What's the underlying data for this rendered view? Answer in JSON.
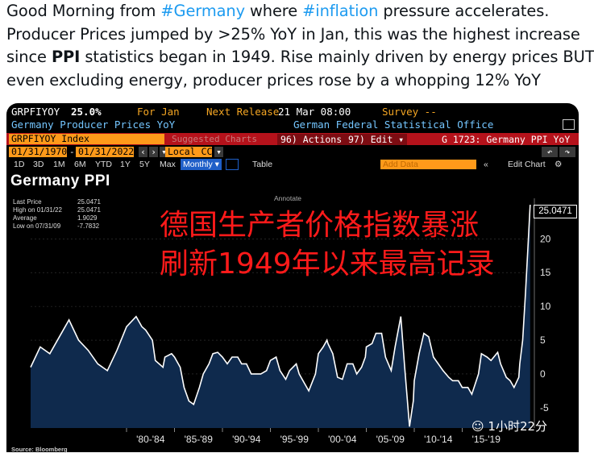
{
  "tweet": {
    "line1_a": "Good Morning from ",
    "line1_tag1": "#Germany",
    "line1_b": " where ",
    "line1_tag2": "#inflation",
    "line1_c": " pressure accelerates.",
    "line2": "Producer Prices jumped by >25% YoY in Jan, this was the highest increase",
    "line3_a": "since ",
    "line3_bold": "PPI",
    "line3_b": " statistics began in 1949. Rise mainly driven by energy prices BUT",
    "line4": "even excluding energy, producer prices rose by a whopping 12% YoY"
  },
  "terminal": {
    "ticker": "GRPFIYOY",
    "value": "25.0%",
    "for_label": "For Jan",
    "next_release": "Next Release",
    "next_release_date": "21 Mar 08:00",
    "survey": "Survey --",
    "subtitle": "Germany Producer Prices YoY",
    "source_office": "German Federal Statistical Office",
    "index_field": "GRPFIYOY Index",
    "suggested": "Suggested Charts",
    "actions": "96) Actions ▾",
    "edit": "97) Edit ▾",
    "chart_id": "G 1723: Germany PPI YoY",
    "start_date": "01/31/1970",
    "end_date": "01/31/2022",
    "currency": "Local CCY",
    "tabs": [
      "1D",
      "3D",
      "1M",
      "6M",
      "YTD",
      "1Y",
      "5Y",
      "Max",
      "Monthly ▾",
      "Table"
    ],
    "add_data": "Add Data",
    "edit_chart": "Edit Chart",
    "chart_title": "Germany PPI",
    "annotate": "Annotate",
    "legend": [
      {
        "label": "Last Price",
        "value": "25.0471"
      },
      {
        "label": "High on 01/31/22",
        "value": "25.0471"
      },
      {
        "label": "Average",
        "value": "1.9029"
      },
      {
        "label": "Low on 07/31/09",
        "value": "-7.7832"
      }
    ],
    "overlay_line1": "德国生产者价格指数暴涨",
    "overlay_line2": "刷新1949年以来最高记录",
    "last_value_box": "25.0471",
    "source": "Source: Bloomberg",
    "watermark": "1小时22分"
  },
  "chart_data": {
    "type": "area",
    "title": "Germany PPI",
    "x_tick_labels": [
      "'80-'84",
      "'85-'89",
      "'90-'94",
      "'95-'99",
      "'00-'04",
      "'05-'09",
      "'10-'14",
      "'15-'19"
    ],
    "y_ticks": [
      -5,
      0,
      5,
      10,
      15,
      20
    ],
    "ylim": [
      -8,
      26
    ],
    "x_range": [
      1970,
      2022.1
    ],
    "series": [
      {
        "values_by_year": [
          [
            1970,
            1
          ],
          [
            1971,
            4
          ],
          [
            1972,
            3
          ],
          [
            1973,
            5.5
          ],
          [
            1974,
            8
          ],
          [
            1975,
            5
          ],
          [
            1976,
            3.5
          ],
          [
            1977,
            1.5
          ],
          [
            1978,
            0.5
          ],
          [
            1979,
            3.5
          ],
          [
            1980,
            7
          ],
          [
            1981,
            8.5
          ],
          [
            1981.6,
            7
          ],
          [
            1982,
            6.5
          ],
          [
            1982.7,
            5
          ],
          [
            1983,
            2
          ],
          [
            1983.8,
            1
          ],
          [
            1984,
            2.5
          ],
          [
            1984.7,
            3
          ],
          [
            1985,
            2.5
          ],
          [
            1985.6,
            1
          ],
          [
            1986,
            -2
          ],
          [
            1986.5,
            -4
          ],
          [
            1987,
            -4.5
          ],
          [
            1987.6,
            -2
          ],
          [
            1988,
            0
          ],
          [
            1988.6,
            1.5
          ],
          [
            1989,
            3
          ],
          [
            1989.5,
            3.2
          ],
          [
            1990,
            2.5
          ],
          [
            1990.5,
            1.5
          ],
          [
            1991,
            2.5
          ],
          [
            1991.6,
            2.5
          ],
          [
            1992,
            1.5
          ],
          [
            1992.5,
            1.5
          ],
          [
            1993,
            0
          ],
          [
            1993.6,
            0
          ],
          [
            1994,
            0
          ],
          [
            1994.6,
            0.5
          ],
          [
            1995,
            2
          ],
          [
            1995.6,
            2.5
          ],
          [
            1996,
            0.5
          ],
          [
            1996.6,
            -0.8
          ],
          [
            1997,
            0.5
          ],
          [
            1997.7,
            1.5
          ],
          [
            1998,
            0
          ],
          [
            1998.6,
            -1.5
          ],
          [
            1999,
            -2.5
          ],
          [
            1999.7,
            0
          ],
          [
            2000,
            3
          ],
          [
            2000.5,
            4
          ],
          [
            2000.9,
            5
          ],
          [
            2001,
            4.5
          ],
          [
            2001.5,
            3
          ],
          [
            2002,
            -0.5
          ],
          [
            2002.5,
            -0.8
          ],
          [
            2003,
            1.5
          ],
          [
            2003.6,
            1.5
          ],
          [
            2004,
            0
          ],
          [
            2004.5,
            1
          ],
          [
            2004.9,
            2.5
          ],
          [
            2005,
            4
          ],
          [
            2005.6,
            4.5
          ],
          [
            2006,
            6
          ],
          [
            2006.6,
            6
          ],
          [
            2007,
            2.5
          ],
          [
            2007.6,
            0.5
          ],
          [
            2008,
            4
          ],
          [
            2008.6,
            8.5
          ],
          [
            2009,
            1
          ],
          [
            2009.5,
            -7.78
          ],
          [
            2009.9,
            -4
          ],
          [
            2010,
            -1
          ],
          [
            2010.5,
            3
          ],
          [
            2011,
            6
          ],
          [
            2011.5,
            5.5
          ],
          [
            2012,
            2.5
          ],
          [
            2012.5,
            1.5
          ],
          [
            2013,
            0.5
          ],
          [
            2013.6,
            -0.5
          ],
          [
            2014,
            -1
          ],
          [
            2014.6,
            -1
          ],
          [
            2015,
            -2
          ],
          [
            2015.6,
            -2
          ],
          [
            2016,
            -3
          ],
          [
            2016.7,
            0
          ],
          [
            2017,
            3
          ],
          [
            2017.6,
            2.5
          ],
          [
            2018,
            2
          ],
          [
            2018.7,
            3.2
          ],
          [
            2019,
            1.5
          ],
          [
            2019.6,
            -0.5
          ],
          [
            2020,
            -1
          ],
          [
            2020.4,
            -2
          ],
          [
            2020.9,
            -0.5
          ],
          [
            2021,
            1.5
          ],
          [
            2021.3,
            5
          ],
          [
            2021.6,
            12
          ],
          [
            2021.9,
            20
          ],
          [
            2022.08,
            25.05
          ]
        ]
      }
    ]
  }
}
